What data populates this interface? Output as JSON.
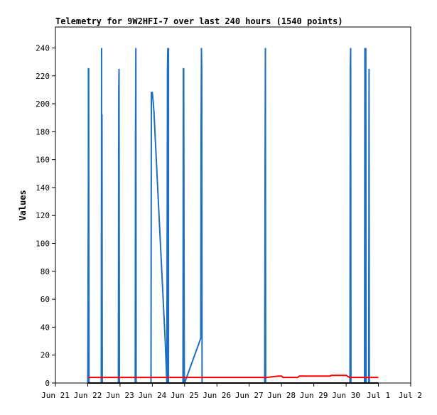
{
  "chart_data": {
    "type": "line",
    "title": "Telemetry for 9W2HFI-7 over last 240 hours (1540 points)",
    "xlabel": "",
    "ylabel": "Values",
    "ylim": [
      0,
      255
    ],
    "xlim": [
      0,
      11
    ],
    "grid": false,
    "legend": "none",
    "x_ticks": [
      {
        "x": 0,
        "label": "Jun 21"
      },
      {
        "x": 1,
        "label": "Jun 22"
      },
      {
        "x": 2,
        "label": "Jun 23"
      },
      {
        "x": 3,
        "label": "Jun 24"
      },
      {
        "x": 4,
        "label": "Jun 25"
      },
      {
        "x": 5,
        "label": "Jun 26"
      },
      {
        "x": 6,
        "label": "Jun 27"
      },
      {
        "x": 7,
        "label": "Jun 28"
      },
      {
        "x": 8,
        "label": "Jun 29"
      },
      {
        "x": 9,
        "label": "Jun 30"
      },
      {
        "x": 10,
        "label": "Jul 1"
      },
      {
        "x": 11,
        "label": "Jul 2"
      }
    ],
    "y_ticks": [
      0,
      20,
      40,
      60,
      80,
      100,
      120,
      140,
      160,
      180,
      200,
      220,
      240
    ],
    "series": [
      {
        "color": "#1f6fbf",
        "x": [
          1.0,
          1.02,
          1.02,
          1.03,
          1.04,
          1.42,
          1.43,
          1.43,
          1.44,
          1.45,
          1.95,
          1.96,
          1.97,
          1.98,
          2.47,
          2.48,
          2.49,
          2.5,
          2.96,
          2.97,
          3.0,
          3.05,
          3.4,
          3.45,
          3.47,
          3.48,
          3.49,
          3.5,
          3.5,
          3.95,
          3.96,
          3.97,
          3.99,
          4.0,
          4.5,
          4.51,
          4.52,
          4.53,
          4.54,
          6.48,
          6.49,
          6.5,
          6.51,
          9.12,
          9.13,
          9.14,
          9.15,
          9.57,
          9.58,
          9.6,
          9.61,
          9.62,
          9.7,
          9.71,
          9.72
        ],
        "y": [
          0,
          145,
          225,
          225,
          0,
          0,
          240,
          192,
          192,
          0,
          0,
          208,
          225,
          0,
          0,
          177,
          240,
          0,
          0,
          208,
          208,
          195,
          30,
          0,
          225,
          240,
          0,
          240,
          0,
          0,
          225,
          225,
          0,
          0,
          32,
          180,
          240,
          225,
          0,
          0,
          145,
          240,
          0,
          0,
          225,
          240,
          0,
          0,
          240,
          0,
          240,
          0,
          0,
          225,
          0
        ]
      },
      {
        "color": "#ff0000",
        "x": [
          1.0,
          6.5,
          6.55,
          6.9,
          7.0,
          7.05,
          7.5,
          7.55,
          8.5,
          8.55,
          9.0,
          9.1,
          10.0
        ],
        "y": [
          4,
          4,
          4,
          5,
          5,
          4,
          4,
          5,
          5,
          5.5,
          5.5,
          4,
          4
        ]
      },
      {
        "color": "#000000",
        "x": [
          1.0,
          10.0
        ],
        "y": [
          0,
          0
        ]
      }
    ]
  }
}
